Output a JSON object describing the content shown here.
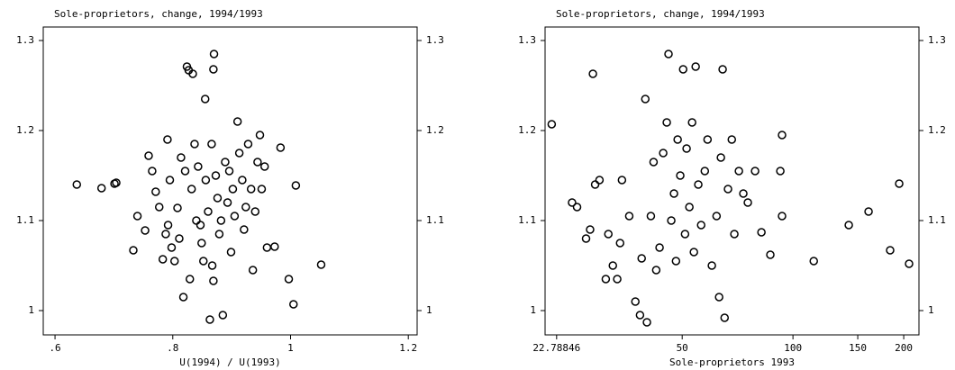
{
  "chart_data": [
    {
      "type": "scatter",
      "title": "Sole-proprietors, change, 1994/1993",
      "x_label": "U(1994) / U(1993)",
      "marker": "hollow-circle",
      "color": "#000000",
      "xlim": [
        0.58,
        1.215
      ],
      "ylim": [
        0.973,
        1.315
      ],
      "xticks": [
        {
          "value": 0.6,
          "label": ".6"
        },
        {
          "value": 0.8,
          "label": ".8"
        },
        1,
        1.2
      ],
      "yticks": [
        1,
        1.1,
        1.2,
        1.3
      ],
      "x": [
        0.637,
        0.679,
        0.701,
        0.704,
        0.733,
        0.74,
        0.753,
        0.759,
        0.765,
        0.771,
        0.777,
        0.783,
        0.788,
        0.791,
        0.792,
        0.795,
        0.798,
        0.803,
        0.808,
        0.811,
        0.814,
        0.818,
        0.821,
        0.824,
        0.827,
        0.829,
        0.832,
        0.834,
        0.837,
        0.84,
        0.843,
        0.847,
        0.849,
        0.852,
        0.855,
        0.856,
        0.86,
        0.863,
        0.866,
        0.867,
        0.869,
        0.87,
        0.869,
        0.873,
        0.876,
        0.879,
        0.882,
        0.885,
        0.889,
        0.893,
        0.896,
        0.899,
        0.902,
        0.905,
        0.91,
        0.913,
        0.918,
        0.921,
        0.924,
        0.928,
        0.933,
        0.936,
        0.94,
        0.944,
        0.948,
        0.951,
        0.956,
        0.96,
        0.973,
        0.983,
        0.997,
        1.005,
        1.009,
        1.052
      ],
      "y": [
        1.14,
        1.136,
        1.141,
        1.142,
        1.067,
        1.105,
        1.089,
        1.172,
        1.155,
        1.132,
        1.115,
        1.057,
        1.085,
        1.19,
        1.095,
        1.145,
        1.07,
        1.055,
        1.114,
        1.08,
        1.17,
        1.015,
        1.155,
        1.271,
        1.267,
        1.035,
        1.135,
        1.263,
        1.185,
        1.1,
        1.16,
        1.095,
        1.075,
        1.055,
        1.235,
        1.145,
        1.11,
        0.99,
        1.185,
        1.05,
        1.268,
        1.285,
        1.033,
        1.15,
        1.125,
        1.085,
        1.1,
        0.995,
        1.165,
        1.12,
        1.155,
        1.065,
        1.135,
        1.105,
        1.21,
        1.175,
        1.145,
        1.09,
        1.115,
        1.185,
        1.135,
        1.045,
        1.11,
        1.165,
        1.195,
        1.135,
        1.16,
        1.07,
        1.071,
        1.181,
        1.035,
        1.007,
        1.139,
        1.051
      ]
    },
    {
      "type": "scatter",
      "title": "Sole-proprietors, change, 1994/1993",
      "x_label": "Sole-proprietors 1993",
      "marker": "hollow-circle",
      "color": "#000000",
      "x_log": true,
      "xlim": [
        21.2,
        220
      ],
      "ylim": [
        0.973,
        1.315
      ],
      "xticks": [
        {
          "value": 22.78846,
          "label": "22.78846"
        },
        50,
        100,
        150,
        200
      ],
      "yticks": [
        1,
        1.1,
        1.2,
        1.3
      ],
      "x": [
        22.1,
        25.1,
        25.9,
        27.4,
        28.1,
        28.6,
        29.0,
        29.8,
        31.0,
        31.5,
        32.4,
        33.3,
        33.9,
        34.3,
        35.9,
        37.3,
        38.4,
        38.8,
        39.7,
        40.1,
        41.1,
        41.8,
        42.5,
        43.4,
        44.4,
        45.4,
        45.9,
        46.7,
        47.5,
        48.1,
        48.6,
        49.4,
        50.3,
        50.9,
        51.4,
        52.3,
        53.2,
        53.8,
        54.4,
        55.3,
        56.3,
        57.6,
        58.6,
        60.2,
        62.0,
        63.0,
        63.7,
        65.2,
        64.4,
        66.6,
        68.2,
        69.3,
        71.3,
        73.3,
        75.4,
        78.9,
        82.1,
        86.8,
        92.4,
        93.4,
        93.4,
        113.9,
        141.8,
        160.5,
        183.7,
        194.4,
        206.8
      ],
      "y": [
        1.207,
        1.12,
        1.115,
        1.08,
        1.09,
        1.263,
        1.14,
        1.145,
        1.035,
        1.085,
        1.05,
        1.035,
        1.075,
        1.145,
        1.105,
        1.01,
        0.995,
        1.058,
        1.235,
        0.987,
        1.105,
        1.165,
        1.045,
        1.07,
        1.175,
        1.209,
        1.285,
        1.1,
        1.13,
        1.055,
        1.19,
        1.15,
        1.268,
        1.085,
        1.18,
        1.115,
        1.209,
        1.065,
        1.271,
        1.14,
        1.095,
        1.155,
        1.19,
        1.05,
        1.105,
        1.015,
        1.17,
        0.992,
        1.268,
        1.135,
        1.19,
        1.085,
        1.155,
        1.13,
        1.12,
        1.155,
        1.087,
        1.062,
        1.155,
        1.105,
        1.195,
        1.055,
        1.095,
        1.11,
        1.067,
        1.141,
        1.052
      ]
    }
  ]
}
